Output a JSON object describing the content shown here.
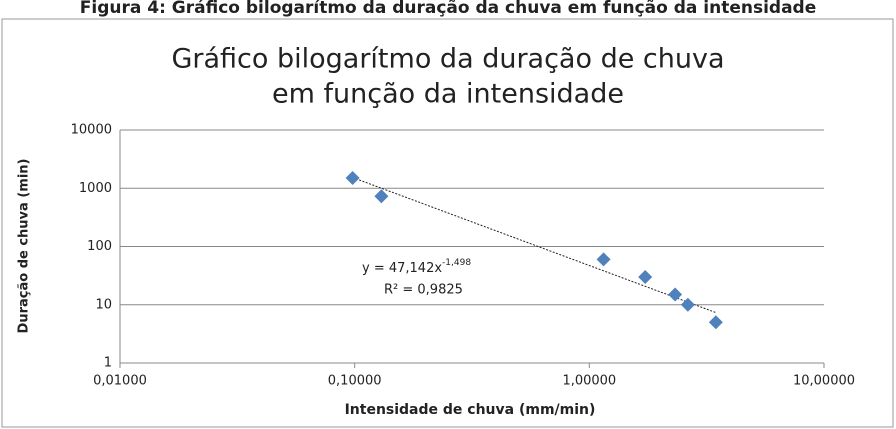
{
  "caption": "Figura 4: Gráfico bilogarítmo da duração da chuva em função da intensidade",
  "chart_data": {
    "type": "scatter",
    "title": [
      "Gráfico bilogarítmo da duração de chuva",
      "em função da intensidade"
    ],
    "x_label": "Intensidade de chuva (mm/min)",
    "y_label": "Duração de chuva (min)",
    "x": [
      0.098,
      0.13,
      1.15,
      1.73,
      2.32,
      2.63,
      3.46
    ],
    "values": [
      1500,
      730,
      60,
      30,
      15,
      10,
      5
    ],
    "color": "#4f81bd",
    "xscale": "log",
    "yscale": "log",
    "xlim": [
      0.01,
      10
    ],
    "ylim": [
      1,
      10000
    ],
    "xticks": [
      {
        "value": 0.01,
        "label": "0,01000"
      },
      {
        "value": 0.1,
        "label": "0,10000"
      },
      {
        "value": 1,
        "label": "1,00000"
      },
      {
        "value": 10,
        "label": "10,00000"
      }
    ],
    "yticks": [
      1,
      10,
      100,
      1000,
      10000
    ],
    "grid": true,
    "trendline": {
      "coefficient": 47.142,
      "exponent": {
        "value": -1.498,
        "label": "-1,498"
      },
      "equation": "y = 47,142x",
      "r2_label": "R² = 0,9825"
    }
  }
}
